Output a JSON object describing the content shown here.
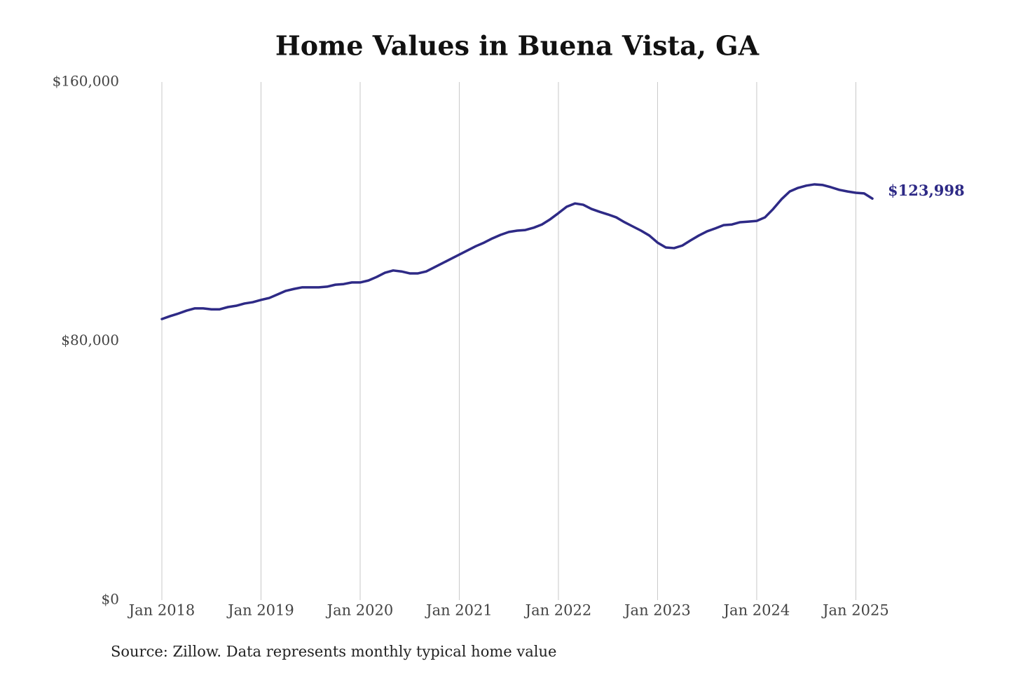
{
  "chart_data": {
    "type": "line",
    "title": "Home Values in Buena Vista, GA",
    "source": "Source: Zillow. Data represents monthly typical home value",
    "x": [
      "2018-01",
      "2018-02",
      "2018-03",
      "2018-04",
      "2018-05",
      "2018-06",
      "2018-07",
      "2018-08",
      "2018-09",
      "2018-10",
      "2018-11",
      "2018-12",
      "2019-01",
      "2019-02",
      "2019-03",
      "2019-04",
      "2019-05",
      "2019-06",
      "2019-07",
      "2019-08",
      "2019-09",
      "2019-10",
      "2019-11",
      "2019-12",
      "2020-01",
      "2020-02",
      "2020-03",
      "2020-04",
      "2020-05",
      "2020-06",
      "2020-07",
      "2020-08",
      "2020-09",
      "2020-10",
      "2020-11",
      "2020-12",
      "2021-01",
      "2021-02",
      "2021-03",
      "2021-04",
      "2021-05",
      "2021-06",
      "2021-07",
      "2021-08",
      "2021-09",
      "2021-10",
      "2021-11",
      "2021-12",
      "2022-01",
      "2022-02",
      "2022-03",
      "2022-04",
      "2022-05",
      "2022-06",
      "2022-07",
      "2022-08",
      "2022-09",
      "2022-10",
      "2022-11",
      "2022-12",
      "2023-01",
      "2023-02",
      "2023-03",
      "2023-04",
      "2023-05",
      "2023-06",
      "2023-07",
      "2023-08",
      "2023-09",
      "2023-10",
      "2023-11",
      "2023-12",
      "2024-01",
      "2024-02",
      "2024-03",
      "2024-04",
      "2024-05",
      "2024-06",
      "2024-07",
      "2024-08",
      "2024-09",
      "2024-10",
      "2024-11",
      "2024-12",
      "2025-01",
      "2025-02",
      "2025-03"
    ],
    "series": [
      {
        "color": "#2e2a86",
        "values": [
          86800,
          87700,
          88500,
          89400,
          90100,
          90100,
          89800,
          89800,
          90500,
          90900,
          91600,
          92000,
          92700,
          93300,
          94400,
          95500,
          96100,
          96600,
          96600,
          96600,
          96800,
          97400,
          97600,
          98100,
          98100,
          98700,
          99800,
          101100,
          101800,
          101500,
          100900,
          100900,
          101500,
          102800,
          104100,
          105400,
          106700,
          108000,
          109300,
          110400,
          111700,
          112800,
          113700,
          114100,
          114300,
          115000,
          116000,
          117600,
          119500,
          121500,
          122500,
          122100,
          120800,
          119900,
          119100,
          118200,
          116700,
          115400,
          114100,
          112600,
          110400,
          108900,
          108700,
          109500,
          111100,
          112600,
          113900,
          114800,
          115800,
          116000,
          116700,
          116900,
          117100,
          118200,
          120800,
          123800,
          126200,
          127300,
          128000,
          128400,
          128200,
          127500,
          126700,
          126200,
          125800,
          125600,
          123998
        ],
        "value_labels": [
          null,
          null,
          null,
          null,
          null,
          null,
          null,
          null,
          null,
          null,
          null,
          null,
          null,
          null,
          null,
          null,
          null,
          null,
          null,
          null,
          null,
          null,
          null,
          null,
          null,
          null,
          null,
          null,
          null,
          null,
          null,
          null,
          null,
          null,
          null,
          null,
          null,
          null,
          null,
          null,
          null,
          null,
          null,
          null,
          null,
          null,
          null,
          null,
          null,
          null,
          null,
          null,
          null,
          null,
          null,
          null,
          null,
          null,
          null,
          null,
          null,
          null,
          null,
          null,
          null,
          null,
          null,
          null,
          null,
          null,
          null,
          null,
          null,
          null,
          null,
          null,
          null,
          null,
          null,
          null,
          null,
          null,
          null,
          null,
          null,
          null,
          "$123,998"
        ]
      }
    ],
    "xlim": [
      "2018-01",
      "2025-03"
    ],
    "xticks": [
      {
        "value": "2018-01",
        "label": "Jan 2018"
      },
      {
        "value": "2019-01",
        "label": "Jan 2019"
      },
      {
        "value": "2020-01",
        "label": "Jan 2020"
      },
      {
        "value": "2021-01",
        "label": "Jan 2021"
      },
      {
        "value": "2022-01",
        "label": "Jan 2022"
      },
      {
        "value": "2023-01",
        "label": "Jan 2023"
      },
      {
        "value": "2024-01",
        "label": "Jan 2024"
      },
      {
        "value": "2025-01",
        "label": "Jan 2025"
      }
    ],
    "ylim": [
      0,
      160000
    ],
    "yticks": [
      {
        "value": 0,
        "label": "$0"
      },
      {
        "value": 80000,
        "label": "$80,000"
      },
      {
        "value": 160000,
        "label": "$160,000"
      }
    ],
    "grid": true
  }
}
